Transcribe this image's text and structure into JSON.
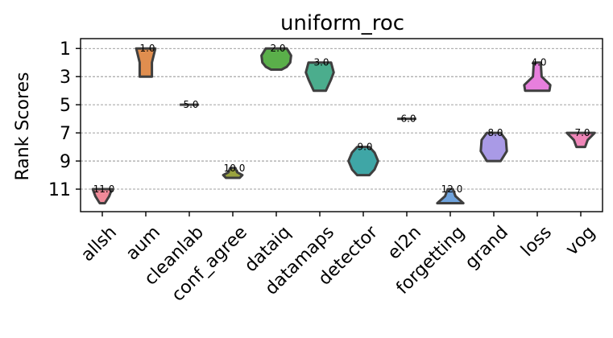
{
  "chart_data": {
    "type": "violin",
    "title": "uniform_roc",
    "ylabel": "Rank Scores",
    "xlabel": "",
    "ylim": [
      12.6,
      0.3
    ],
    "y_inverted": true,
    "yticks": [
      1,
      3,
      5,
      7,
      9,
      11
    ],
    "ytick_labels": [
      "1",
      "3",
      "5",
      "7",
      "9",
      "11"
    ],
    "grid": "horizontal-dashed",
    "categories": [
      "allsh",
      "aum",
      "cleanlab",
      "conf_agree",
      "dataiq",
      "datamaps",
      "detector",
      "el2n",
      "forgetting",
      "grand",
      "loss",
      "vog"
    ],
    "series": [
      {
        "category": "allsh",
        "label": "11.0",
        "color": "#f08a99",
        "profile": [
          [
            11,
            0.55
          ],
          [
            11.5,
            0.4
          ],
          [
            12,
            0.15
          ]
        ]
      },
      {
        "category": "aum",
        "label": "1.0",
        "color": "#e08e4f",
        "profile": [
          [
            1,
            0.55
          ],
          [
            2,
            0.35
          ],
          [
            3,
            0.35
          ]
        ]
      },
      {
        "category": "cleanlab",
        "label": "5.0",
        "color": "#bd9a3e",
        "profile": [
          [
            5,
            0.55
          ]
        ]
      },
      {
        "category": "conf_agree",
        "label": "10.0",
        "color": "#9aa33e",
        "profile": [
          [
            9.5,
            0.15
          ],
          [
            9.8,
            0.25
          ],
          [
            10,
            0.55
          ],
          [
            10.2,
            0.4
          ]
        ]
      },
      {
        "category": "dataiq",
        "label": "2.0",
        "color": "#5aaf4a",
        "profile": [
          [
            1,
            0.6
          ],
          [
            1.5,
            0.85
          ],
          [
            2,
            0.8
          ],
          [
            2.3,
            0.6
          ],
          [
            2.5,
            0.3
          ]
        ]
      },
      {
        "category": "datamaps",
        "label": "3.0",
        "color": "#4bad8d",
        "profile": [
          [
            2,
            0.65
          ],
          [
            2.7,
            0.8
          ],
          [
            3.2,
            0.65
          ],
          [
            4,
            0.35
          ]
        ]
      },
      {
        "category": "detector",
        "label": "9.0",
        "color": "#3fa6a6",
        "profile": [
          [
            8,
            0.35
          ],
          [
            8.4,
            0.65
          ],
          [
            9,
            0.85
          ],
          [
            9.6,
            0.65
          ],
          [
            10,
            0.35
          ]
        ]
      },
      {
        "category": "el2n",
        "label": "6.0",
        "color": "#41a3c6",
        "profile": [
          [
            6,
            0.55
          ]
        ]
      },
      {
        "category": "forgetting",
        "label": "12.0",
        "color": "#6fa3dd",
        "profile": [
          [
            11,
            0.15
          ],
          [
            11.5,
            0.3
          ],
          [
            12,
            0.75
          ]
        ]
      },
      {
        "category": "grand",
        "label": "8.0",
        "color": "#a99ae6",
        "profile": [
          [
            7,
            0.4
          ],
          [
            7.5,
            0.7
          ],
          [
            8.3,
            0.75
          ],
          [
            9,
            0.4
          ]
        ]
      },
      {
        "category": "loss",
        "label": "4.0",
        "color": "#e77fdd",
        "profile": [
          [
            2,
            0.2
          ],
          [
            3,
            0.25
          ],
          [
            3.6,
            0.75
          ],
          [
            4,
            0.7
          ]
        ]
      },
      {
        "category": "vog",
        "label": "7.0",
        "color": "#ef86b8",
        "profile": [
          [
            7,
            0.8
          ],
          [
            7.5,
            0.4
          ],
          [
            8,
            0.25
          ]
        ]
      }
    ]
  }
}
